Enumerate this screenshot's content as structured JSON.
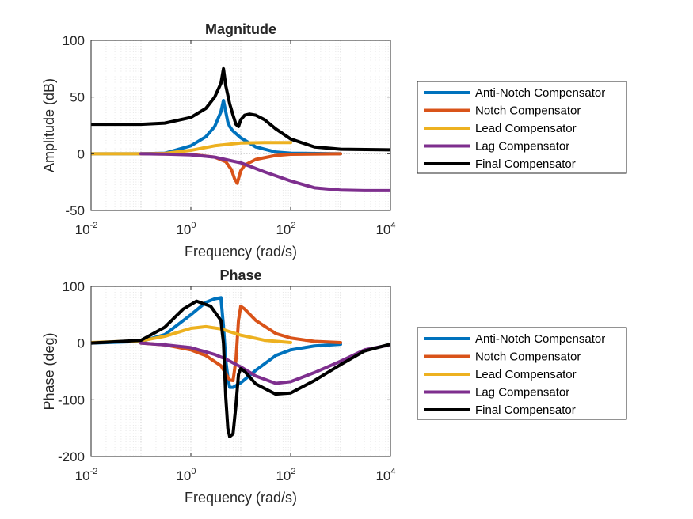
{
  "chart_data": [
    {
      "type": "line",
      "title": "Magnitude",
      "xlabel": "Frequency (rad/s)",
      "ylabel": "Amplitude (dB)",
      "xscale": "log",
      "xlim": [
        0.01,
        10000
      ],
      "ylim": [
        -50,
        100
      ],
      "xticks": [
        {
          "base": "10",
          "exp": "-2"
        },
        {
          "base": "10",
          "exp": "0"
        },
        {
          "base": "10",
          "exp": "2"
        },
        {
          "base": "10",
          "exp": "4"
        }
      ],
      "yticks": [
        "-50",
        "0",
        "50",
        "100"
      ],
      "grid": true,
      "legend_position": "right",
      "series": [
        {
          "name": "Anti-Notch Compensator",
          "color": "#0072BD",
          "x": [
            0.01,
            0.1,
            0.3,
            1,
            2,
            3,
            4,
            4.5,
            5,
            5.5,
            6,
            7,
            10,
            20,
            50,
            100,
            1000
          ],
          "y": [
            0,
            0,
            0.5,
            7,
            15,
            24,
            37,
            47,
            37,
            28,
            24,
            20,
            14,
            6,
            1.5,
            0.5,
            0
          ]
        },
        {
          "name": "Notch Compensator",
          "color": "#D95319",
          "x": [
            0.1,
            1,
            3,
            5,
            6.5,
            7.5,
            8.5,
            10,
            12,
            20,
            50,
            100,
            1000
          ],
          "y": [
            0,
            -0.5,
            -3,
            -7,
            -14,
            -22,
            -26,
            -15,
            -10,
            -5,
            -1.5,
            -0.5,
            0
          ]
        },
        {
          "name": "Lead Compensator",
          "color": "#EDB120",
          "x": [
            0.01,
            0.1,
            0.3,
            1,
            3,
            10,
            30,
            100
          ],
          "y": [
            0,
            0,
            0.3,
            3,
            7,
            9.5,
            9.8,
            9.8
          ]
        },
        {
          "name": "Lag Compensator",
          "color": "#7E2F8E",
          "x": [
            0.1,
            0.3,
            1,
            3,
            10,
            30,
            100,
            300,
            1000,
            3000,
            10000
          ],
          "y": [
            0,
            -0.3,
            -1,
            -3,
            -8,
            -16,
            -24,
            -30,
            -32,
            -32.5,
            -32.5
          ]
        },
        {
          "name": "Final Compensator",
          "color": "#000000",
          "x": [
            0.01,
            0.1,
            0.3,
            1,
            2,
            3,
            4,
            4.5,
            5,
            6,
            7,
            8,
            9,
            10,
            12,
            15,
            20,
            30,
            50,
            100,
            300,
            1000,
            10000
          ],
          "y": [
            26,
            26,
            27,
            32,
            40,
            50,
            62,
            75,
            60,
            44,
            34,
            26,
            24,
            30,
            34,
            35,
            34,
            30,
            22,
            13,
            6,
            4,
            3.5
          ]
        }
      ]
    },
    {
      "type": "line",
      "title": "Phase",
      "xlabel": "Frequency (rad/s)",
      "ylabel": "Phase (deg)",
      "xscale": "log",
      "xlim": [
        0.01,
        10000
      ],
      "ylim": [
        -200,
        100
      ],
      "xticks": [
        {
          "base": "10",
          "exp": "-2"
        },
        {
          "base": "10",
          "exp": "0"
        },
        {
          "base": "10",
          "exp": "2"
        },
        {
          "base": "10",
          "exp": "4"
        }
      ],
      "yticks": [
        "-200",
        "-100",
        "0",
        "100"
      ],
      "grid": true,
      "legend_position": "right",
      "series": [
        {
          "name": "Anti-Notch Compensator",
          "color": "#0072BD",
          "x": [
            0.01,
            0.1,
            0.3,
            1,
            2,
            3,
            4,
            4.5,
            5,
            5.5,
            6,
            7,
            10,
            20,
            50,
            100,
            300,
            1000
          ],
          "y": [
            0,
            3,
            15,
            50,
            72,
            78,
            80,
            30,
            -30,
            -60,
            -78,
            -78,
            -70,
            -48,
            -22,
            -12,
            -5,
            -2
          ]
        },
        {
          "name": "Notch Compensator",
          "color": "#D95319",
          "x": [
            0.1,
            0.3,
            1,
            2,
            4,
            6,
            7,
            8,
            9,
            10,
            12,
            20,
            50,
            100,
            300,
            1000
          ],
          "y": [
            0,
            -3,
            -12,
            -22,
            -40,
            -65,
            -66,
            -30,
            40,
            65,
            60,
            40,
            17,
            9,
            3,
            1
          ]
        },
        {
          "name": "Lead Compensator",
          "color": "#EDB120",
          "x": [
            0.01,
            0.1,
            0.3,
            1,
            2,
            4,
            10,
            30,
            100
          ],
          "y": [
            1,
            4,
            12,
            26,
            29,
            25,
            14,
            5,
            1
          ]
        },
        {
          "name": "Lag Compensator",
          "color": "#7E2F8E",
          "x": [
            0.1,
            0.3,
            1,
            3,
            5,
            10,
            20,
            50,
            100,
            300,
            1000,
            3000,
            10000
          ],
          "y": [
            0,
            -3,
            -8,
            -20,
            -28,
            -42,
            -58,
            -71,
            -68,
            -52,
            -32,
            -12,
            -3
          ]
        },
        {
          "name": "Final Compensator",
          "color": "#000000",
          "x": [
            0.01,
            0.1,
            0.3,
            0.7,
            1.3,
            2.5,
            4,
            4.5,
            5,
            5.5,
            6,
            7,
            8,
            9,
            10,
            12,
            20,
            50,
            100,
            300,
            1000,
            3000,
            10000
          ],
          "y": [
            0,
            5,
            28,
            60,
            74,
            65,
            40,
            0,
            -95,
            -150,
            -165,
            -160,
            -110,
            -55,
            -45,
            -50,
            -72,
            -90,
            -88,
            -66,
            -38,
            -14,
            -2
          ]
        }
      ]
    }
  ]
}
